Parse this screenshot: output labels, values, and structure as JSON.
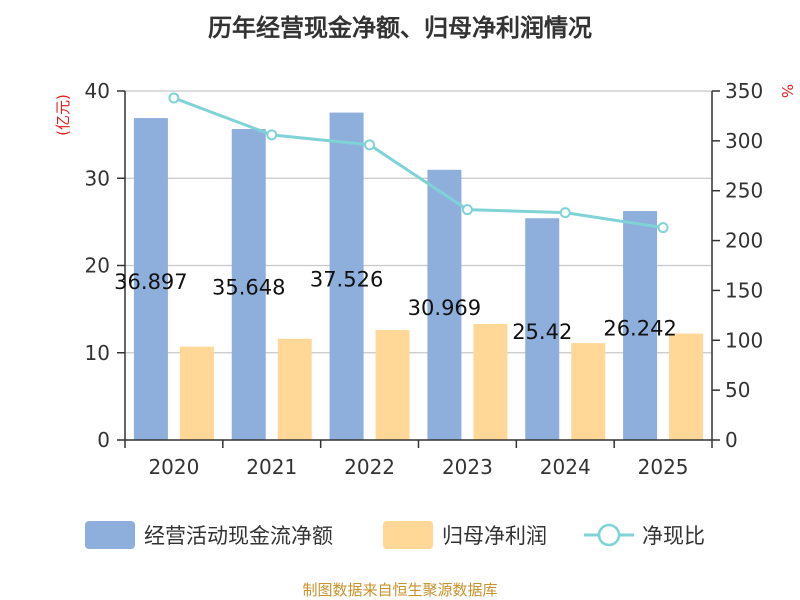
{
  "chart_data": {
    "type": "bar",
    "title": "历年经营现金净额、归母净利润情况",
    "categories": [
      "2020",
      "2021",
      "2022",
      "2023",
      "2024",
      "2025"
    ],
    "series": [
      {
        "name": "经营活动现金流净额",
        "type": "bar",
        "axis": "left",
        "values": [
          36.897,
          35.648,
          37.526,
          30.969,
          25.42,
          26.242
        ],
        "labels": [
          "36.897",
          "35.648",
          "37.526",
          "30.969",
          "25.42",
          "26.242"
        ]
      },
      {
        "name": "归母净利润",
        "type": "bar",
        "axis": "left",
        "values": [
          10.7,
          11.6,
          12.6,
          13.3,
          11.1,
          12.2
        ]
      },
      {
        "name": "净现比",
        "type": "line",
        "axis": "right",
        "values": [
          343,
          306,
          296,
          231,
          228,
          213
        ]
      }
    ],
    "left_axis": {
      "label": "(亿元)",
      "min": 0,
      "max": 40,
      "ticks": [
        "0",
        "10",
        "20",
        "30",
        "40"
      ]
    },
    "right_axis": {
      "label": "%",
      "min": 0,
      "max": 350,
      "ticks": [
        "0",
        "50",
        "100",
        "150",
        "200",
        "250",
        "300",
        "350"
      ]
    },
    "grid": true,
    "legend_position": "bottom"
  },
  "colors": {
    "bar_cash": "#8eaedb",
    "bar_profit": "#ffd897",
    "line": "#7fd3d7",
    "axis_label": "#e0201c",
    "source": "#c8922d",
    "grid": "#c8c8c8",
    "axis": "#333333"
  },
  "source": "制图数据来自恒生聚源数据库"
}
